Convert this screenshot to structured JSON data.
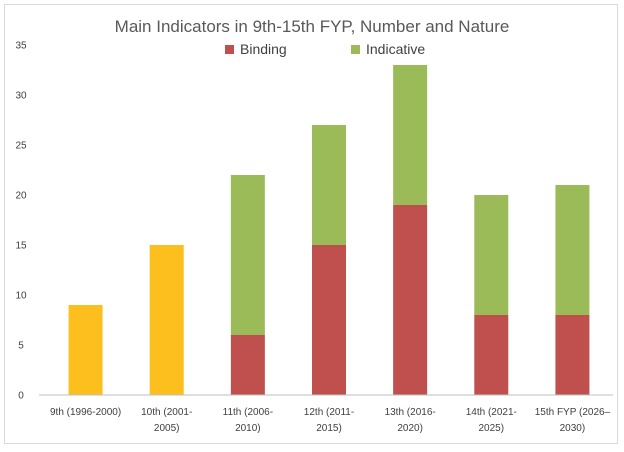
{
  "chart_data": {
    "type": "bar",
    "stacked": true,
    "title": "Main Indicators in 9th-15th FYP, Number and Nature",
    "xlabel": "",
    "ylabel": "",
    "ylim": [
      0,
      35
    ],
    "yticks": [
      0,
      5,
      10,
      15,
      20,
      25,
      30,
      35
    ],
    "grid": false,
    "legend_position": "top",
    "categories": [
      [
        "9th (1996-2000)"
      ],
      [
        "10th (2001-",
        "2005)"
      ],
      [
        "11th (2006-",
        "2010)"
      ],
      [
        "12th (2011-",
        "2015)"
      ],
      [
        "13th (2016-",
        "2020)"
      ],
      [
        "14th (2021-",
        "2025)"
      ],
      [
        "15th FYP (2026–",
        "2030)"
      ]
    ],
    "series": [
      {
        "name": "",
        "color": "#fcbf1e",
        "values": [
          9,
          15,
          0,
          0,
          0,
          0,
          0
        ],
        "in_legend": false
      },
      {
        "name": "Binding",
        "color": "#c0504d",
        "values": [
          0,
          0,
          6,
          15,
          19,
          8,
          8
        ],
        "in_legend": true
      },
      {
        "name": "Indicative",
        "color": "#9bbb59",
        "values": [
          0,
          0,
          16,
          12,
          14,
          12,
          13
        ],
        "in_legend": true
      }
    ]
  }
}
